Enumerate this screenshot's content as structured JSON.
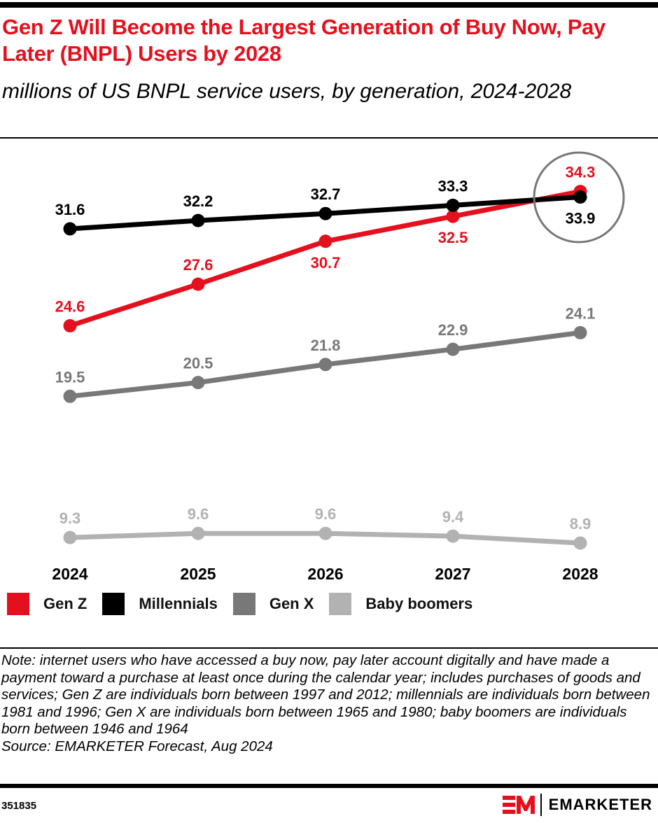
{
  "header": {
    "title": "Gen Z Will Become the Largest Generation of Buy Now, Pay Later (BNPL) Users by 2028",
    "subtitle": "millions of US BNPL service users, by generation, 2024-2028"
  },
  "chart_data": {
    "type": "line",
    "title": "Gen Z Will Become the Largest Generation of Buy Now, Pay Later (BNPL) Users by 2028",
    "subtitle": "millions of US BNPL service users, by generation, 2024-2028",
    "xlabel": "",
    "ylabel": "millions of US BNPL service users",
    "categories": [
      "2024",
      "2025",
      "2026",
      "2027",
      "2028"
    ],
    "grid": false,
    "y_axis_visible": false,
    "legend_position": "bottom-left",
    "series": [
      {
        "name": "Gen Z",
        "color": "#e5101d",
        "values": [
          24.6,
          27.6,
          30.7,
          32.5,
          34.3
        ],
        "label_position": [
          "above",
          "above",
          "below",
          "below",
          "above"
        ]
      },
      {
        "name": "Millennials",
        "color": "#000000",
        "values": [
          31.6,
          32.2,
          32.7,
          33.3,
          33.9
        ],
        "label_position": [
          "above",
          "above",
          "above",
          "above",
          "below"
        ]
      },
      {
        "name": "Gen X",
        "color": "#787878",
        "values": [
          19.5,
          20.5,
          21.8,
          22.9,
          24.1
        ],
        "label_position": [
          "above",
          "above",
          "above",
          "above",
          "above"
        ]
      },
      {
        "name": "Baby boomers",
        "color": "#b2b2b2",
        "values": [
          9.3,
          9.6,
          9.6,
          9.4,
          8.9
        ],
        "label_position": [
          "above",
          "above",
          "above",
          "above",
          "above"
        ]
      }
    ],
    "annotations": [
      {
        "type": "circle-highlight",
        "category": "2028",
        "series": [
          "Gen Z",
          "Millennials"
        ],
        "color": "#777777"
      }
    ]
  },
  "legend": [
    {
      "label": "Gen Z",
      "color": "#e5101d"
    },
    {
      "label": "Millennials",
      "color": "#000000"
    },
    {
      "label": "Gen X",
      "color": "#787878"
    },
    {
      "label": "Baby boomers",
      "color": "#b2b2b2"
    }
  ],
  "footer": {
    "note": "Note: internet users who have accessed a buy now, pay later account digitally and have made a payment toward a purchase at least once during the calendar year; includes purchases of goods and services; Gen Z are individuals born between 1997 and 2012; millennials are individuals born between 1981 and 1996; Gen X are individuals born between 1965 and 1980; baby boomers are individuals born between 1946 and 1964",
    "source": "Source: EMARKETER Forecast, Aug 2024",
    "chart_id": "351835",
    "brand": "EMARKETER",
    "brand_color": "#e5101d"
  }
}
